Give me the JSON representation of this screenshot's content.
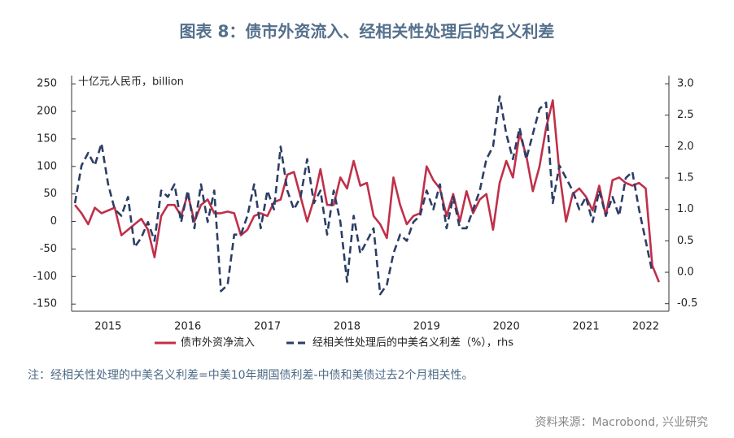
{
  "chart_data": {
    "type": "line",
    "title": "图表 8：债市外资流入、经相关性处理后的名义利差",
    "y_label": "十亿元人民币，billion",
    "note": "注：经相关性处理的中美名义利差=中美10年期国债利差-中债和美债过去2个月相关性。",
    "source": "资料来源：Macrobond, 兴业研究",
    "categories": [
      null,
      null,
      null,
      null,
      null,
      "2015",
      null,
      null,
      null,
      null,
      null,
      null,
      null,
      null,
      null,
      null,
      null,
      "2016",
      null,
      null,
      null,
      null,
      null,
      null,
      null,
      null,
      null,
      null,
      null,
      "2017",
      null,
      null,
      null,
      null,
      null,
      null,
      null,
      null,
      null,
      null,
      null,
      "2018",
      null,
      null,
      null,
      null,
      null,
      null,
      null,
      null,
      null,
      null,
      null,
      "2019",
      null,
      null,
      null,
      null,
      null,
      null,
      null,
      null,
      null,
      null,
      null,
      "2020",
      null,
      null,
      null,
      null,
      null,
      null,
      null,
      null,
      null,
      null,
      null,
      "2021",
      null,
      null,
      null,
      null,
      null,
      null,
      null,
      null,
      "2022",
      null,
      null,
      null
    ],
    "series": [
      {
        "name": "债市外资净流入",
        "color": "#c0304a",
        "axis": "y",
        "values": [
          30,
          15,
          -5,
          25,
          15,
          20,
          25,
          -25,
          -15,
          -5,
          5,
          -15,
          -65,
          10,
          30,
          30,
          10,
          50,
          0,
          30,
          40,
          15,
          15,
          18,
          15,
          -25,
          -15,
          10,
          15,
          10,
          35,
          40,
          85,
          90,
          45,
          0,
          40,
          95,
          30,
          30,
          80,
          60,
          110,
          65,
          70,
          10,
          -5,
          -30,
          80,
          30,
          -5,
          10,
          15,
          100,
          75,
          60,
          10,
          50,
          0,
          55,
          15,
          40,
          50,
          -15,
          70,
          110,
          80,
          160,
          120,
          55,
          100,
          170,
          220,
          90,
          0,
          50,
          60,
          45,
          20,
          65,
          10,
          75,
          80,
          70,
          65,
          70,
          60,
          -80,
          -110,
          null
        ]
      },
      {
        "name": "经相关性处理后的中美名义利差（%），rhs",
        "color": "#2c3e66",
        "axis": "y2",
        "values": [
          1.1,
          1.7,
          1.9,
          1.7,
          2.05,
          1.4,
          1.0,
          0.9,
          1.2,
          0.4,
          0.55,
          0.8,
          0.5,
          1.3,
          1.2,
          1.4,
          0.8,
          1.3,
          0.7,
          1.4,
          0.8,
          1.3,
          -0.3,
          -0.2,
          0.6,
          0.6,
          0.9,
          1.4,
          0.7,
          1.3,
          1.0,
          2.0,
          1.3,
          1.0,
          1.2,
          1.8,
          1.1,
          1.3,
          0.6,
          1.3,
          0.8,
          -0.15,
          0.9,
          0.3,
          0.5,
          0.7,
          -0.35,
          -0.2,
          0.3,
          0.6,
          0.5,
          0.8,
          0.9,
          1.3,
          1.0,
          1.4,
          0.7,
          1.2,
          0.7,
          0.7,
          1.0,
          1.3,
          1.8,
          2.0,
          2.8,
          2.2,
          1.8,
          2.3,
          1.8,
          2.2,
          2.6,
          2.7,
          1.1,
          1.7,
          1.5,
          1.3,
          1.0,
          1.2,
          0.8,
          1.3,
          0.9,
          1.2,
          0.9,
          1.5,
          1.6,
          1.0,
          0.5,
          0.0,
          null,
          null
        ]
      }
    ],
    "ylim": [
      -163,
      265
    ],
    "yticks": [
      -150,
      -100,
      -50,
      0,
      50,
      100,
      150,
      200,
      250
    ],
    "y2lim": [
      -0.62,
      3.13
    ],
    "y2ticks": [
      {
        "value": -0.5,
        "label": "-0.5"
      },
      {
        "value": 0,
        "label": "0.0"
      },
      {
        "value": 0.5,
        "label": "0.5"
      },
      {
        "value": 1,
        "label": "1.0"
      },
      {
        "value": 1.5,
        "label": "1.5"
      },
      {
        "value": 2,
        "label": "2.0"
      },
      {
        "value": 2.5,
        "label": "2.5"
      },
      {
        "value": 3,
        "label": "3.0"
      }
    ],
    "grid": false
  }
}
